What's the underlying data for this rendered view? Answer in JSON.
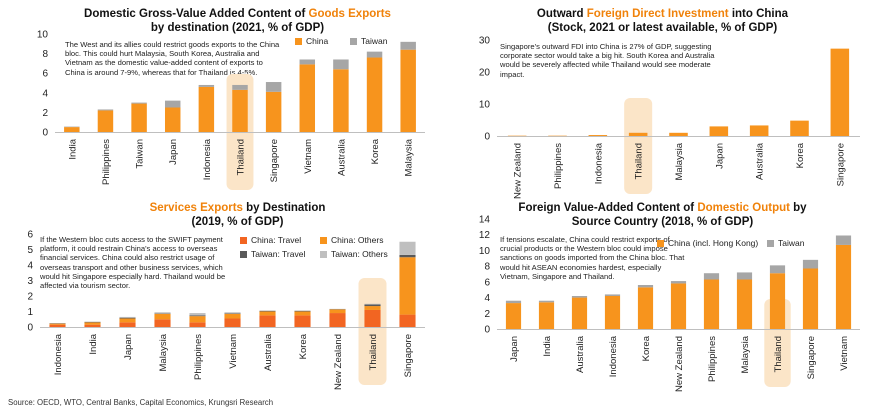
{
  "source": "Source: OECD, WTO, Central Banks, Capital Economics, Krungsri Research",
  "colors": {
    "orange": "#f7941d",
    "orange_dark": "#f26522",
    "gray": "#a6a6a6",
    "gray_dark": "#595959",
    "highlight": "#fbe5c8"
  },
  "chart_data": [
    {
      "type": "bar",
      "stacked": true,
      "title_pre": "Domestic Gross-Value Added Content of ",
      "title_hl": "Goods Exports",
      "title_line2": "by destination (2021, % of GDP)",
      "note": "The West and its allies could restrict goods exports to the China bloc. This could hurt Malaysia, South Korea, Australia and Vietnam as the domestic value-added content of exports to China is around 7-9%, whereas that for Thailand is 4-5%.",
      "highlight": "Thailand",
      "categories": [
        "India",
        "Philippines",
        "Taiwan",
        "Japan",
        "Indonesia",
        "Thailand",
        "Singapore",
        "Vietnam",
        "Australia",
        "Korea",
        "Malaysia"
      ],
      "ylim": [
        0,
        10
      ],
      "yticks": [
        "0",
        "2",
        "4",
        "6",
        "8",
        "10"
      ],
      "series": [
        {
          "name": "China",
          "values": [
            0.5,
            2.2,
            2.9,
            2.5,
            4.6,
            4.3,
            4.1,
            6.9,
            6.4,
            7.6,
            8.4
          ]
        },
        {
          "name": "Taiwan",
          "values": [
            0.05,
            0.1,
            0.1,
            0.7,
            0.2,
            0.5,
            1.0,
            0.5,
            1.0,
            0.6,
            0.8
          ]
        }
      ]
    },
    {
      "type": "bar",
      "stacked": false,
      "title_pre": "Outward ",
      "title_hl": "Foreign Direct Investment",
      "title_post": " into China",
      "title_line2": "(Stock, 2021 or latest available, % of GDP)",
      "note": "Singapore's outward FDI into China is 27% of GDP, suggesting corporate sector would take a big hit. South Korea and Australia would be severely affected while Thailand would see moderate impact.",
      "highlight": "Thailand",
      "categories": [
        "New Zealand",
        "Philippines",
        "Indonesia",
        "Thailand",
        "Malaysia",
        "Japan",
        "Australia",
        "Korea",
        "Singapore"
      ],
      "ylim": [
        0,
        30
      ],
      "yticks": [
        "0",
        "10",
        "20",
        "30"
      ],
      "series": [
        {
          "name": "FDI",
          "values": [
            0.1,
            0.1,
            0.3,
            1.0,
            1.0,
            3.0,
            3.3,
            4.8,
            27.3
          ]
        }
      ]
    },
    {
      "type": "bar",
      "stacked": true,
      "title_hl": "Services Exports",
      "title_post": " by Destination",
      "title_line2": "(2019, % of GDP)",
      "note": "If the Western bloc cuts access to the SWIFT payment platform, it could restrain China's access to overseas financial services. China could also restrict usage of overseas transport and other business services, which would hit Singapore especially hard. Thailand would be affected via tourism sector.",
      "highlight": "Thailand",
      "categories": [
        "Indonesia",
        "India",
        "Japan",
        "Malaysia",
        "Philippines",
        "Vietnam",
        "Australia",
        "Korea",
        "New Zealand",
        "Thailand",
        "Singapore"
      ],
      "ylim": [
        0,
        6
      ],
      "yticks": [
        "0",
        "1",
        "2",
        "3",
        "4",
        "5",
        "6"
      ],
      "series": [
        {
          "name": "China: Travel",
          "values": [
            0.15,
            0.15,
            0.3,
            0.5,
            0.3,
            0.55,
            0.75,
            0.75,
            0.9,
            1.1,
            0.8
          ]
        },
        {
          "name": "China: Others",
          "values": [
            0.08,
            0.15,
            0.25,
            0.35,
            0.4,
            0.3,
            0.25,
            0.25,
            0.25,
            0.25,
            3.7
          ]
        },
        {
          "name": "Taiwan: Travel",
          "values": [
            0.01,
            0.02,
            0.05,
            0.03,
            0.05,
            0.04,
            0.03,
            0.03,
            0.01,
            0.1,
            0.15
          ]
        },
        {
          "name": "Taiwan: Others",
          "values": [
            0.01,
            0.03,
            0.05,
            0.07,
            0.15,
            0.06,
            0.04,
            0.04,
            0.01,
            0.05,
            0.85
          ]
        }
      ]
    },
    {
      "type": "bar",
      "stacked": true,
      "title_pre": "Foreign Value-Added Content of ",
      "title_hl": "Domestic Output",
      "title_post": " by",
      "title_line2": "Source Country (2018, % of GDP)",
      "note": "If tensions escalate, China could restrict exports of crucial products or the Western bloc could impose sanctions on goods imported from the China bloc. That would hit ASEAN economies hardest, especially Vietnam, Singapore and Thailand.",
      "highlight": "Thailand",
      "categories": [
        "Japan",
        "India",
        "Australia",
        "Indonesia",
        "Korea",
        "New Zealand",
        "Philippines",
        "Malaysia",
        "Thailand",
        "Singapore",
        "Vietnam"
      ],
      "ylim": [
        0,
        14
      ],
      "yticks": [
        "0",
        "2",
        "4",
        "6",
        "8",
        "10",
        "12",
        "14"
      ],
      "series": [
        {
          "name": "China (incl. Hong Kong)",
          "values": [
            3.3,
            3.4,
            4.0,
            4.2,
            5.3,
            5.8,
            6.3,
            6.3,
            7.1,
            7.7,
            10.7
          ]
        },
        {
          "name": "Taiwan",
          "values": [
            0.3,
            0.2,
            0.2,
            0.2,
            0.3,
            0.3,
            0.8,
            0.9,
            1.0,
            1.1,
            1.2
          ]
        }
      ]
    }
  ]
}
